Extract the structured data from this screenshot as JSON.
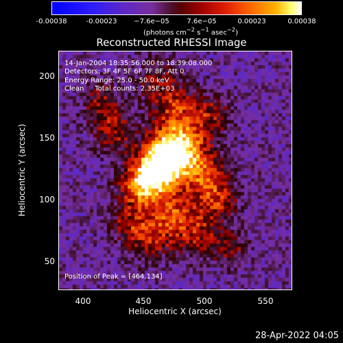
{
  "colorbar": {
    "ticks": [
      "-0.00038",
      "-0.00023",
      "−7.6e−05",
      "7.6e−05",
      "0.00023",
      "0.00038"
    ],
    "unit_html": "(photons cm<sup>−2</sup> s<sup>−1</sup> asec<sup>−2</sup>)"
  },
  "title": "Reconstructed RHESSI Image",
  "annotations": {
    "time_range": "14-Jan-2004 18:35:56.000 to 18:39:08.000",
    "detectors": "Detectors: 3F 4F 5F 6F 7F 8F, Att 0",
    "energy": "Energy Range: 25.0 - 50.0 keV",
    "clean": "Clean     Total counts: 2.35E+03",
    "peak": "Position of Peak = [464,134]"
  },
  "axes": {
    "xlabel": "Heliocentric X (arcsec)",
    "ylabel": "Heliocentric Y (arcsec)",
    "xticks": [
      "400",
      "450",
      "500",
      "550"
    ],
    "yticks": [
      "200",
      "150",
      "100",
      "50"
    ],
    "xlim": [
      375,
      566
    ],
    "ylim": [
      26,
      222
    ]
  },
  "image": {
    "colormap": "diverging blue-purple-black-red-yellow-white",
    "peak_x": 464,
    "peak_y": 134
  },
  "datestamp": "28-Apr-2022 04:05"
}
